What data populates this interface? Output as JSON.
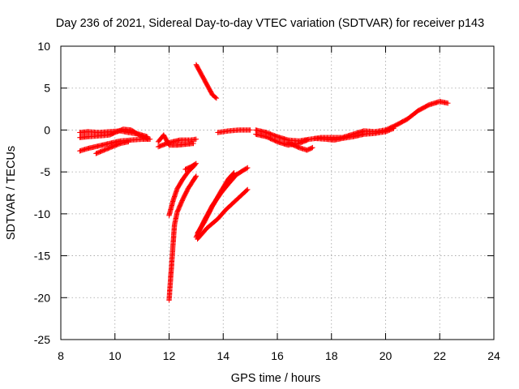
{
  "chart_data": {
    "type": "scatter",
    "title": "Day 236 of 2021, Sidereal Day-to-day VTEC variation (SDTVAR) for receiver p143",
    "xlabel": "GPS time / hours",
    "ylabel": "SDTVAR / TECUs",
    "xlim": [
      8,
      24
    ],
    "ylim": [
      -25,
      10
    ],
    "xticks": [
      8,
      10,
      12,
      14,
      16,
      18,
      20,
      22,
      24
    ],
    "yticks": [
      -25,
      -20,
      -15,
      -10,
      -5,
      0,
      5,
      10
    ],
    "grid": true,
    "marker": "+",
    "color": "#ff0000",
    "series": [
      {
        "values": [
          [
            8.7,
            -0.3
          ],
          [
            9.0,
            -0.2
          ],
          [
            9.4,
            -0.3
          ],
          [
            9.8,
            -0.2
          ],
          [
            10.2,
            -0.1
          ],
          [
            10.5,
            -0.3
          ],
          [
            10.9,
            -0.5
          ],
          [
            11.2,
            -0.8
          ]
        ]
      },
      {
        "values": [
          [
            8.7,
            -0.9
          ],
          [
            9.0,
            -0.8
          ],
          [
            9.4,
            -0.7
          ],
          [
            9.8,
            -0.6
          ],
          [
            10.0,
            -0.3
          ],
          [
            10.3,
            0.1
          ],
          [
            10.6,
            0.0
          ],
          [
            10.9,
            -0.6
          ],
          [
            11.2,
            -1.0
          ]
        ]
      },
      {
        "values": [
          [
            8.7,
            -2.5
          ],
          [
            9.0,
            -2.2
          ],
          [
            9.4,
            -1.9
          ],
          [
            9.8,
            -1.6
          ],
          [
            10.2,
            -1.3
          ],
          [
            10.6,
            -1.2
          ],
          [
            11.0,
            -1.1
          ],
          [
            11.3,
            -1.1
          ]
        ]
      },
      {
        "values": [
          [
            9.3,
            -2.8
          ],
          [
            9.6,
            -2.4
          ],
          [
            9.9,
            -2.0
          ],
          [
            10.2,
            -1.6
          ],
          [
            10.5,
            -1.4
          ]
        ]
      },
      {
        "values": [
          [
            11.6,
            -1.4
          ],
          [
            11.8,
            -0.6
          ],
          [
            12.0,
            -1.8
          ],
          [
            12.3,
            -1.8
          ],
          [
            12.6,
            -1.7
          ],
          [
            12.9,
            -1.6
          ]
        ]
      },
      {
        "values": [
          [
            11.6,
            -2.0
          ],
          [
            12.0,
            -1.5
          ],
          [
            12.4,
            -1.2
          ],
          [
            12.8,
            -1.2
          ],
          [
            13.0,
            -1.1
          ]
        ]
      },
      {
        "values": [
          [
            13.0,
            7.8
          ],
          [
            13.2,
            6.6
          ],
          [
            13.4,
            5.4
          ],
          [
            13.6,
            4.2
          ],
          [
            13.75,
            3.8
          ]
        ]
      },
      {
        "values": [
          [
            12.6,
            -4.7
          ],
          [
            12.8,
            -4.4
          ],
          [
            13.0,
            -4.0
          ]
        ]
      },
      {
        "values": [
          [
            12.0,
            -10.2
          ],
          [
            12.15,
            -8.4
          ],
          [
            12.3,
            -7.0
          ],
          [
            12.5,
            -5.9
          ],
          [
            12.7,
            -5.0
          ],
          [
            12.95,
            -4.2
          ]
        ]
      },
      {
        "values": [
          [
            12.0,
            -20.3
          ],
          [
            12.05,
            -18.0
          ],
          [
            12.1,
            -15.8
          ],
          [
            12.15,
            -13.5
          ],
          [
            12.2,
            -11.3
          ],
          [
            12.3,
            -9.8
          ],
          [
            12.5,
            -8.3
          ],
          [
            12.7,
            -7.0
          ],
          [
            12.9,
            -6.0
          ],
          [
            13.0,
            -5.5
          ]
        ]
      },
      {
        "values": [
          [
            13.0,
            -12.8
          ],
          [
            13.3,
            -10.8
          ],
          [
            13.6,
            -9.0
          ],
          [
            13.9,
            -7.6
          ],
          [
            14.2,
            -6.4
          ],
          [
            14.5,
            -5.3
          ],
          [
            14.9,
            -4.5
          ]
        ]
      },
      {
        "values": [
          [
            13.05,
            -13.0
          ],
          [
            13.4,
            -11.7
          ],
          [
            13.8,
            -10.6
          ],
          [
            14.1,
            -9.5
          ],
          [
            14.5,
            -8.3
          ],
          [
            14.9,
            -7.1
          ]
        ]
      },
      {
        "values": [
          [
            13.05,
            -12.3
          ],
          [
            13.3,
            -11.0
          ],
          [
            13.6,
            -9.1
          ],
          [
            13.9,
            -7.4
          ],
          [
            14.2,
            -5.8
          ],
          [
            14.4,
            -5.1
          ]
        ]
      },
      {
        "values": [
          [
            13.8,
            -0.3
          ],
          [
            14.2,
            -0.1
          ],
          [
            14.6,
            0.0
          ],
          [
            15.0,
            0.0
          ]
        ]
      },
      {
        "values": [
          [
            15.2,
            0.0
          ],
          [
            15.6,
            -0.3
          ],
          [
            16.0,
            -0.8
          ],
          [
            16.4,
            -1.2
          ],
          [
            16.8,
            -1.3
          ],
          [
            17.2,
            -1.1
          ],
          [
            17.6,
            -0.9
          ],
          [
            18.0,
            -0.9
          ],
          [
            18.4,
            -0.9
          ],
          [
            18.8,
            -0.5
          ],
          [
            19.2,
            -0.1
          ],
          [
            19.6,
            -0.2
          ],
          [
            20.0,
            0.0
          ],
          [
            20.4,
            0.6
          ],
          [
            20.8,
            1.3
          ],
          [
            21.2,
            2.3
          ],
          [
            21.6,
            3.0
          ],
          [
            22.0,
            3.4
          ],
          [
            22.3,
            3.2
          ]
        ]
      },
      {
        "values": [
          [
            15.2,
            -0.5
          ],
          [
            15.6,
            -0.8
          ],
          [
            16.0,
            -1.4
          ],
          [
            16.4,
            -1.8
          ],
          [
            16.8,
            -1.6
          ],
          [
            17.1,
            -1.2
          ]
        ]
      },
      {
        "values": [
          [
            16.4,
            -1.5
          ],
          [
            16.8,
            -2.1
          ],
          [
            17.1,
            -2.4
          ],
          [
            17.3,
            -2.1
          ]
        ]
      },
      {
        "values": [
          [
            17.4,
            -1.0
          ],
          [
            17.8,
            -1.1
          ],
          [
            18.1,
            -1.2
          ],
          [
            18.4,
            -1.0
          ],
          [
            18.8,
            -0.8
          ],
          [
            19.2,
            -0.5
          ],
          [
            19.6,
            -0.4
          ],
          [
            20.0,
            -0.2
          ],
          [
            20.3,
            0.2
          ]
        ]
      }
    ]
  }
}
